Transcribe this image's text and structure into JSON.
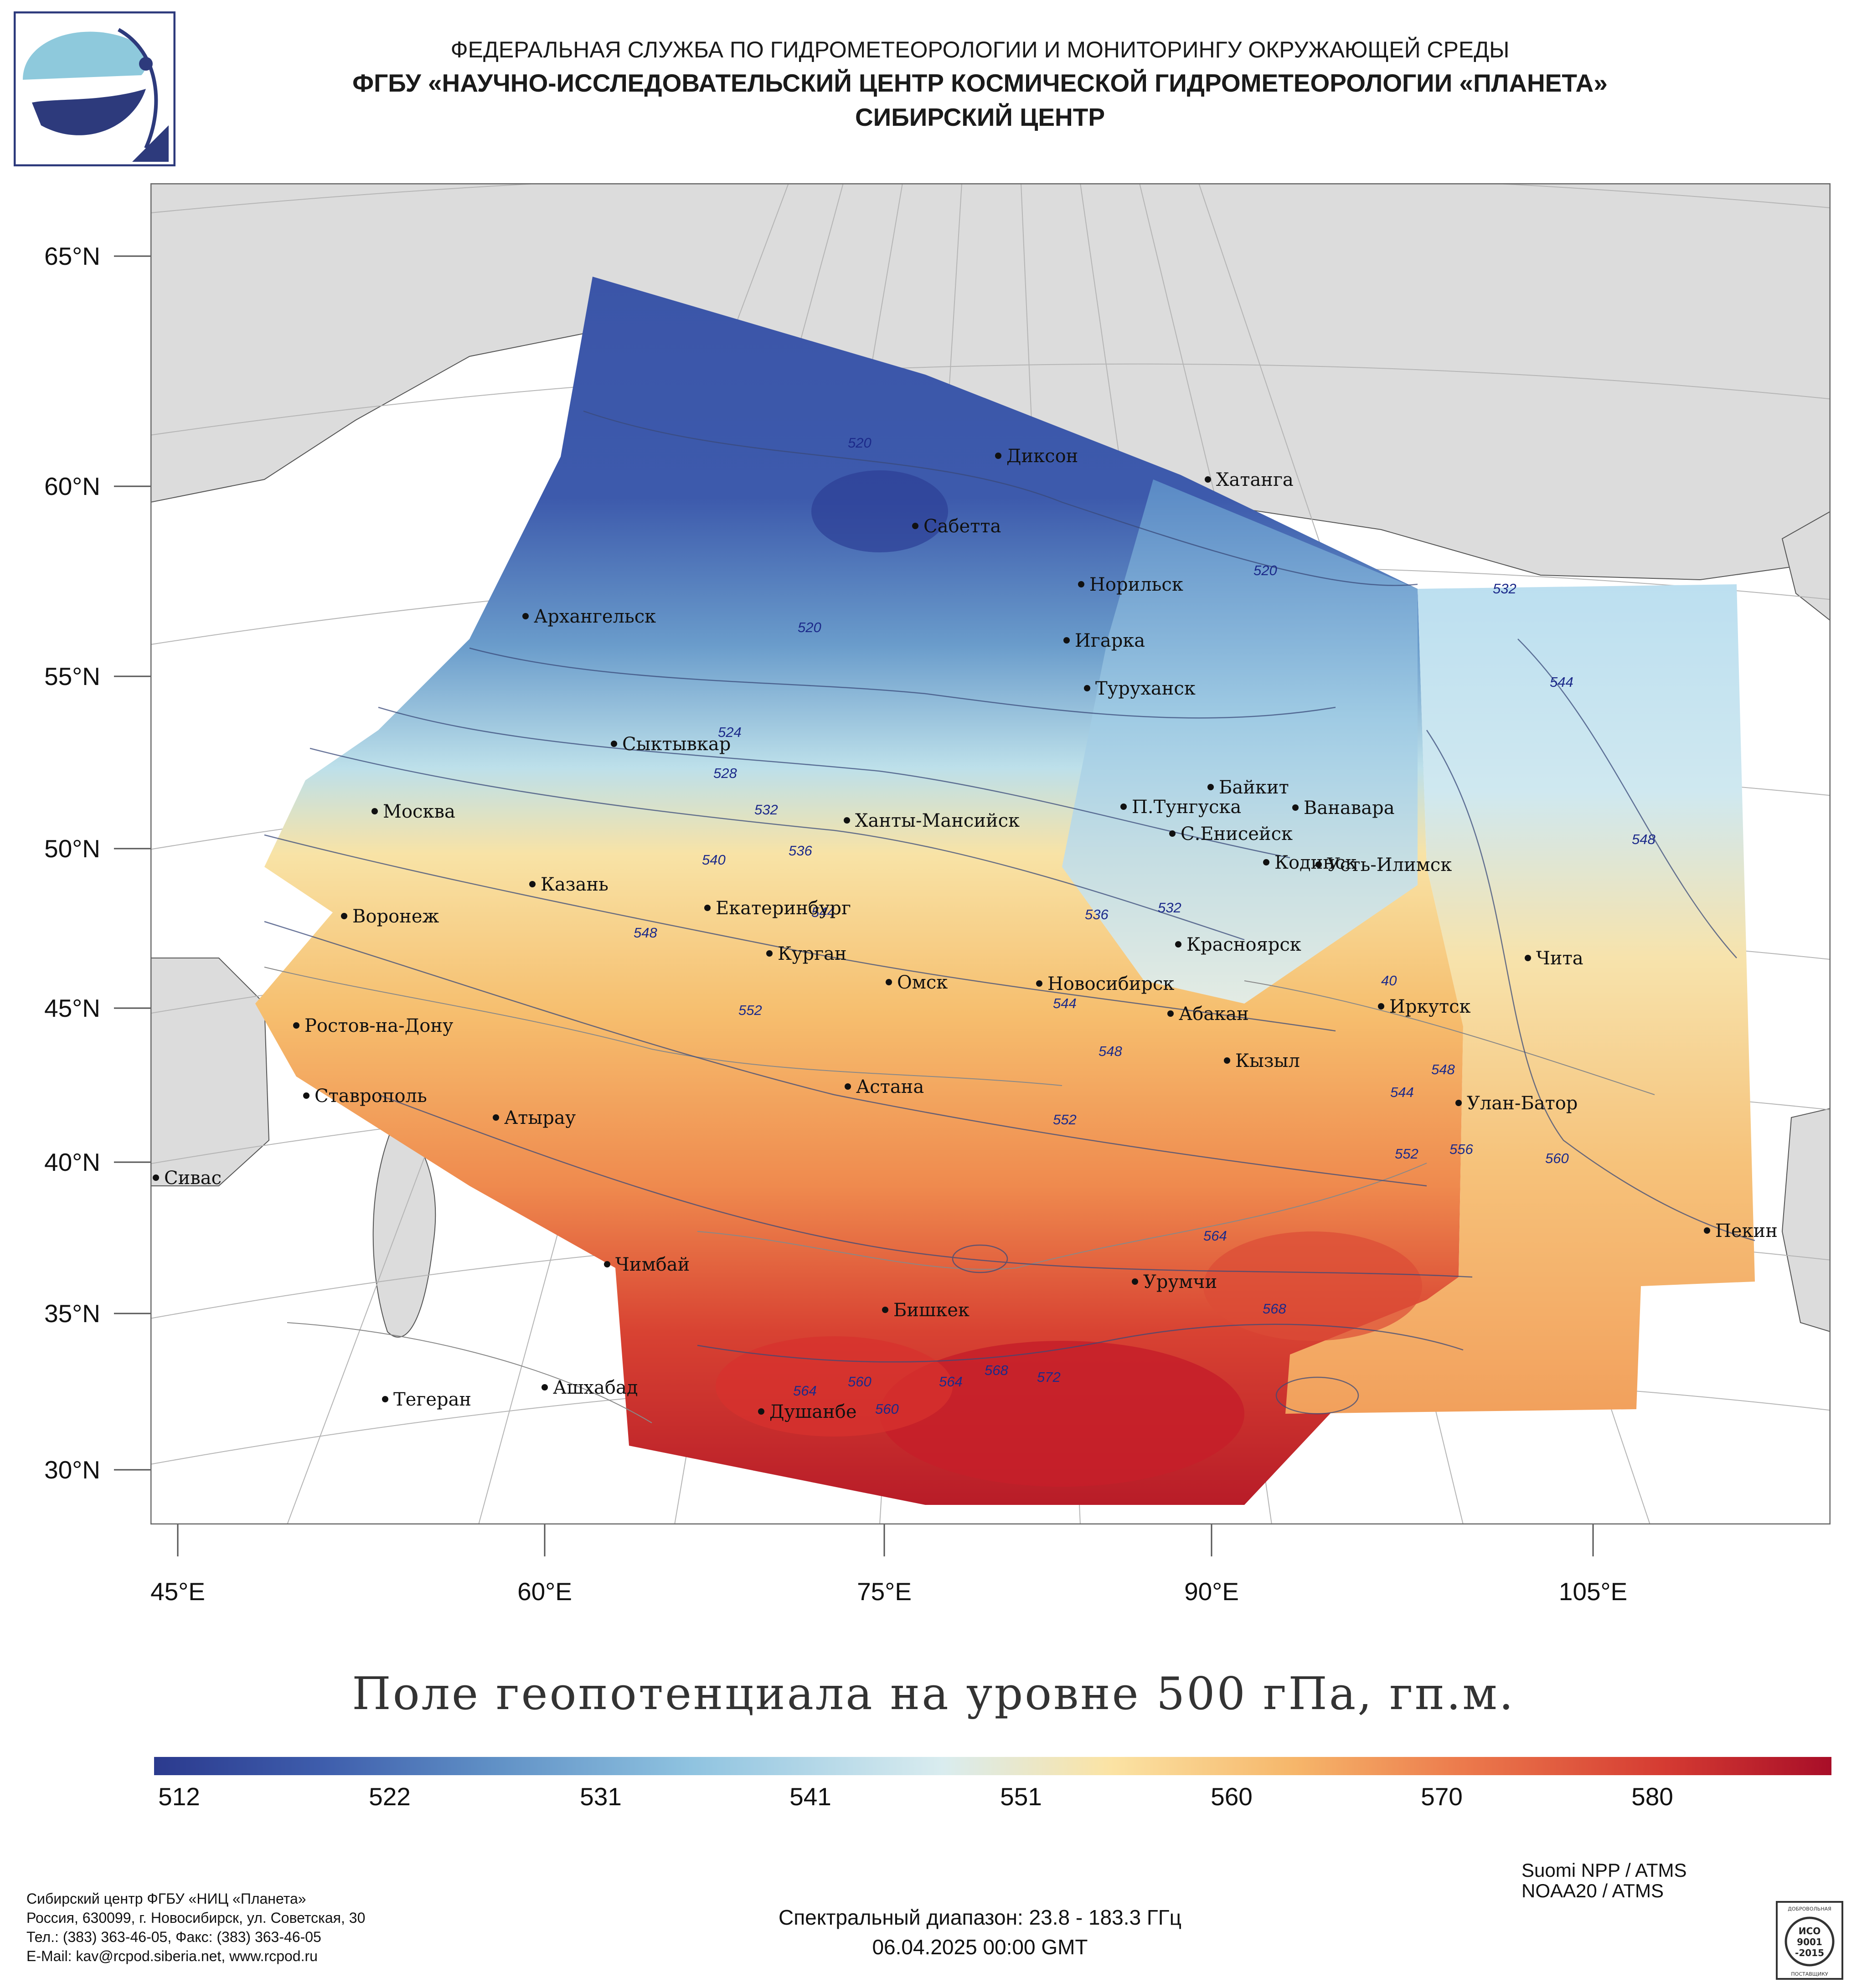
{
  "header": {
    "line1": "ФЕДЕРАЛЬНАЯ СЛУЖБА ПО ГИДРОМЕТЕОРОЛОГИИ И МОНИТОРИНГУ ОКРУЖАЮЩЕЙ СРЕДЫ",
    "line2": "ФГБУ «НАУЧНО-ИССЛЕДОВАТЕЛЬСКИЙ ЦЕНТР КОСМИЧЕСКОЙ ГИДРОМЕТЕОРОЛОГИИ «ПЛАНЕТА»",
    "line3": "СИБИРСКИЙ ЦЕНТР"
  },
  "logo_icon": "planeta-satellite-logo",
  "map": {
    "title": "Поле геопотенциала на уровне 500 гПа, гп.м.",
    "lat_labels": [
      "65°N",
      "60°N",
      "55°N",
      "50°N",
      "45°N",
      "40°N",
      "35°N",
      "30°N"
    ],
    "lon_labels": [
      "45°E",
      "60°E",
      "75°E",
      "90°E",
      "105°E"
    ],
    "cities": [
      "Диксон",
      "Хатанга",
      "Сабетта",
      "Норильск",
      "Архангельск",
      "Игарка",
      "Туруханск",
      "Сыктывкар",
      "Байкит",
      "Москва",
      "П.Тунгуска",
      "Ванавара",
      "Ханты-Мансийск",
      "С.Енисейск",
      "Кодинск",
      "Усть-Илимск",
      "Казань",
      "Екатеринбург",
      "Воронеж",
      "Красноярск",
      "Курган",
      "Чита",
      "Омск",
      "Новосибирск",
      "Иркутск",
      "Ростов-на-Дону",
      "Абакан",
      "Кызыл",
      "Астана",
      "Ставрополь",
      "Улан-Батор",
      "Атырау",
      "Сивас",
      "Пекин",
      "Чимбай",
      "Урумчи",
      "Бишкек",
      "Ашхабад",
      "Тегеран",
      "Душанбе"
    ],
    "contour_labels": [
      "520",
      "520",
      "520",
      "532",
      "544",
      "524",
      "528",
      "532",
      "536",
      "540",
      "544",
      "548",
      "548",
      "552",
      "536",
      "532",
      "40",
      "544",
      "548",
      "552",
      "544",
      "548",
      "552",
      "556",
      "560",
      "564",
      "568",
      "560",
      "564",
      "568",
      "572",
      "564",
      "560"
    ]
  },
  "colorbar": {
    "ticks": [
      "512",
      "522",
      "531",
      "541",
      "551",
      "560",
      "570",
      "580"
    ],
    "colors": [
      "#2b3a8e",
      "#3e5dac",
      "#5f8fc5",
      "#8fc3e0",
      "#d9ecef",
      "#fbe3a4",
      "#f6b66a",
      "#ec7a4c",
      "#d53b32",
      "#a80e28"
    ]
  },
  "footer": {
    "org_lines": [
      "Сибирский центр ФГБУ «НИЦ «Планета»",
      "Россия, 630099, г. Новосибирск, ул. Советская, 30",
      "Тел.: (383) 363-46-05, Факс: (383) 363-46-05",
      "E-Mail: kav@rcpod.siberia.net, www.rcpod.ru"
    ],
    "spectral": "Спектральный диапазон: 23.8 - 183.3 ГГц",
    "datetime": "06.04.2025 00:00 GMT",
    "instruments": [
      "Suomi NPP / ATMS",
      "NOAA20 / ATMS"
    ],
    "iso_badge": {
      "top": "ДОБРОВОЛЬНАЯ",
      "l1": "ИСО",
      "l2": "9001",
      "l3": "-2015",
      "bottom": "ПОСТАВЩИКУ"
    }
  }
}
